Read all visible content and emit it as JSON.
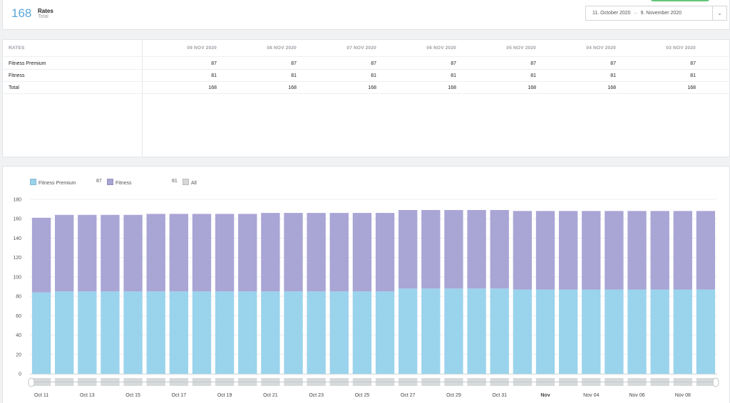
{
  "header": {
    "total_value": "168",
    "title": "Rates",
    "subtitle": "Total",
    "date_range": {
      "start": "11. October 2020",
      "separator": "–",
      "end": "9. November 2020",
      "dropdown_icon": "chevron-down-icon"
    }
  },
  "table": {
    "header_label": "RATES",
    "columns": [
      "09 NOV 2020",
      "08 NOV 2020",
      "07 NOV 2020",
      "06 NOV 2020",
      "05 NOV 2020",
      "04 NOV 2020",
      "03 NOV 2020"
    ],
    "rows": [
      {
        "label": "Fitness Premium",
        "values": [
          "87",
          "87",
          "87",
          "87",
          "87",
          "87",
          "87"
        ]
      },
      {
        "label": "Fitness",
        "values": [
          "81",
          "81",
          "81",
          "81",
          "81",
          "81",
          "81"
        ]
      },
      {
        "label": "Total",
        "values": [
          "168",
          "168",
          "168",
          "168",
          "168",
          "168",
          "168"
        ]
      }
    ]
  },
  "legend": {
    "items": [
      {
        "name": "Fitness Premium",
        "value": "87",
        "color": "#9ad3ec"
      },
      {
        "name": "Fitness",
        "value": "81",
        "color": "#a9a5d5"
      },
      {
        "name": "All",
        "value": "",
        "color": "#d5d7d8"
      }
    ]
  },
  "chart_data": {
    "type": "bar",
    "stacked": true,
    "ylim": [
      0,
      180
    ],
    "yticks": [
      0,
      20,
      40,
      60,
      80,
      100,
      120,
      140,
      160,
      180
    ],
    "grid": true,
    "categories": [
      "Oct 11",
      "Oct 12",
      "Oct 13",
      "Oct 14",
      "Oct 15",
      "Oct 16",
      "Oct 17",
      "Oct 18",
      "Oct 19",
      "Oct 20",
      "Oct 21",
      "Oct 22",
      "Oct 23",
      "Oct 24",
      "Oct 25",
      "Oct 26",
      "Oct 27",
      "Oct 28",
      "Oct 29",
      "Oct 30",
      "Oct 31",
      "Nov 01",
      "Nov 02",
      "Nov 03",
      "Nov 04",
      "Nov 05",
      "Nov 06",
      "Nov 07",
      "Nov 08",
      "Nov 09"
    ],
    "x_tick_labels": [
      "Oct 11",
      "",
      "Oct 13",
      "",
      "Oct 15",
      "",
      "Oct 17",
      "",
      "Oct 19",
      "",
      "Oct 21",
      "",
      "Oct 23",
      "",
      "Oct 25",
      "",
      "Oct 27",
      "",
      "Oct 29",
      "",
      "Oct 31",
      "",
      "Nov",
      "",
      "Nov 04",
      "",
      "Nov 06",
      "",
      "Nov 08",
      ""
    ],
    "bold_tick": "Nov",
    "series": [
      {
        "name": "Fitness Premium",
        "color": "#9ad3ec",
        "values": [
          84,
          85,
          85,
          85,
          85,
          85,
          85,
          85,
          85,
          85,
          85,
          85,
          85,
          85,
          85,
          85,
          88,
          88,
          88,
          88,
          88,
          87,
          87,
          87,
          87,
          87,
          87,
          87,
          87,
          87
        ]
      },
      {
        "name": "Fitness",
        "color": "#a9a5d5",
        "values": [
          77,
          79,
          79,
          79,
          79,
          80,
          80,
          80,
          80,
          80,
          81,
          81,
          81,
          81,
          81,
          81,
          81,
          81,
          81,
          81,
          81,
          81,
          81,
          81,
          81,
          81,
          81,
          81,
          81,
          81
        ]
      }
    ],
    "navigator_color": "#d6dadb"
  }
}
